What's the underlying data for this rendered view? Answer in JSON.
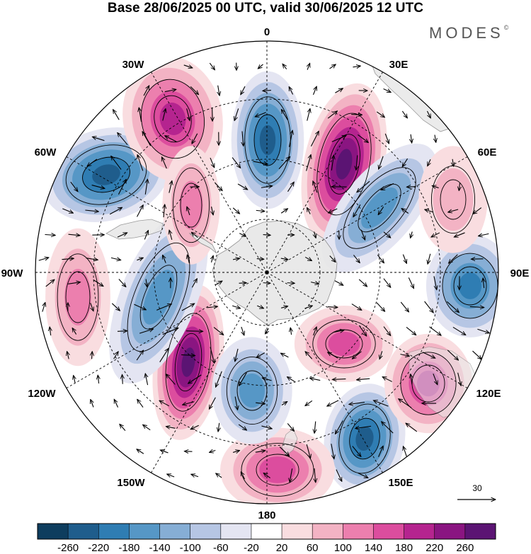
{
  "header": {
    "title": "Base 28/06/2025 00 UTC, valid 30/06/2025 12 UTC",
    "brand": "MODES",
    "brand_mark": "©"
  },
  "map": {
    "projection": "south polar stereographic",
    "longitude_labels": {
      "top": "0",
      "top_right": "30E",
      "upper_right": "60E",
      "right": "90E",
      "lower_right": "120E",
      "bottom_right": "150E",
      "bottom": "180",
      "bottom_left": "150W",
      "lower_left": "120W",
      "left": "90W",
      "upper_left": "60W",
      "top_left": "30W"
    },
    "reference_vector_label": "30",
    "anomaly_centres": [
      {
        "sign": "positive",
        "strength": 260,
        "longitude": "20E"
      },
      {
        "sign": "positive",
        "strength": 260,
        "longitude": "145W"
      },
      {
        "sign": "negative",
        "strength": -220,
        "longitude": "0"
      },
      {
        "sign": "negative",
        "strength": -220,
        "longitude": "55W"
      },
      {
        "sign": "negative",
        "strength": -220,
        "longitude": "145E"
      },
      {
        "sign": "positive",
        "strength": 180,
        "longitude": "30W"
      },
      {
        "sign": "positive",
        "strength": 180,
        "longitude": "120E"
      },
      {
        "sign": "negative",
        "strength": -180,
        "longitude": "90E"
      },
      {
        "sign": "negative",
        "strength": -140,
        "longitude": "110W"
      },
      {
        "sign": "positive",
        "strength": 140,
        "longitude": "180"
      },
      {
        "sign": "negative",
        "strength": -140,
        "longitude": "165W"
      },
      {
        "sign": "negative",
        "strength": -140,
        "longitude": "45E"
      },
      {
        "sign": "positive",
        "strength": 140,
        "longitude": "105E"
      },
      {
        "sign": "positive",
        "strength": 100,
        "longitude": "85W"
      },
      {
        "sign": "positive",
        "strength": 100,
        "longitude": "40W"
      },
      {
        "sign": "positive",
        "strength": 60,
        "longitude": "70E"
      }
    ]
  },
  "colorbar": {
    "ticks": [
      "-260",
      "-220",
      "-180",
      "-140",
      "-100",
      "-60",
      "-20",
      "20",
      "60",
      "100",
      "140",
      "180",
      "220",
      "260"
    ],
    "colors": [
      "#0e3d5e",
      "#1f5d8c",
      "#2f7db3",
      "#5697c6",
      "#86aed5",
      "#b6c6e4",
      "#e4e5f2",
      "#ffffff",
      "#f9dde0",
      "#f3b3c4",
      "#ec7fae",
      "#dc4d9e",
      "#b5248f",
      "#8a1581",
      "#5b1473"
    ]
  }
}
